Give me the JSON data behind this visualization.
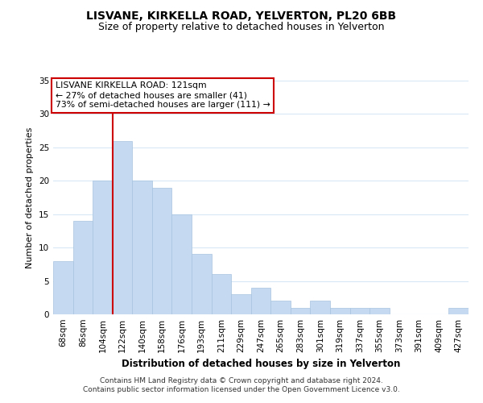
{
  "title": "LISVANE, KIRKELLA ROAD, YELVERTON, PL20 6BB",
  "subtitle": "Size of property relative to detached houses in Yelverton",
  "xlabel": "Distribution of detached houses by size in Yelverton",
  "ylabel": "Number of detached properties",
  "bar_labels": [
    "68sqm",
    "86sqm",
    "104sqm",
    "122sqm",
    "140sqm",
    "158sqm",
    "176sqm",
    "193sqm",
    "211sqm",
    "229sqm",
    "247sqm",
    "265sqm",
    "283sqm",
    "301sqm",
    "319sqm",
    "337sqm",
    "355sqm",
    "373sqm",
    "391sqm",
    "409sqm",
    "427sqm"
  ],
  "bar_values": [
    8,
    14,
    20,
    26,
    20,
    19,
    15,
    9,
    6,
    3,
    4,
    2,
    1,
    2,
    1,
    1,
    1,
    0,
    0,
    0,
    1
  ],
  "bar_color": "#c5d9f0",
  "bar_edge_color": "#a8c4e0",
  "vline_index": 3,
  "vline_color": "#cc0000",
  "ylim": [
    0,
    35
  ],
  "yticks": [
    0,
    5,
    10,
    15,
    20,
    25,
    30,
    35
  ],
  "annotation_title": "LISVANE KIRKELLA ROAD: 121sqm",
  "annotation_line1": "← 27% of detached houses are smaller (41)",
  "annotation_line2": "73% of semi-detached houses are larger (111) →",
  "annotation_box_color": "#ffffff",
  "annotation_box_edge": "#cc0000",
  "footer_line1": "Contains HM Land Registry data © Crown copyright and database right 2024.",
  "footer_line2": "Contains public sector information licensed under the Open Government Licence v3.0.",
  "background_color": "#ffffff",
  "grid_color": "#d8e8f5",
  "title_fontsize": 10,
  "subtitle_fontsize": 9,
  "axis_label_fontsize": 8,
  "tick_fontsize": 7.5
}
